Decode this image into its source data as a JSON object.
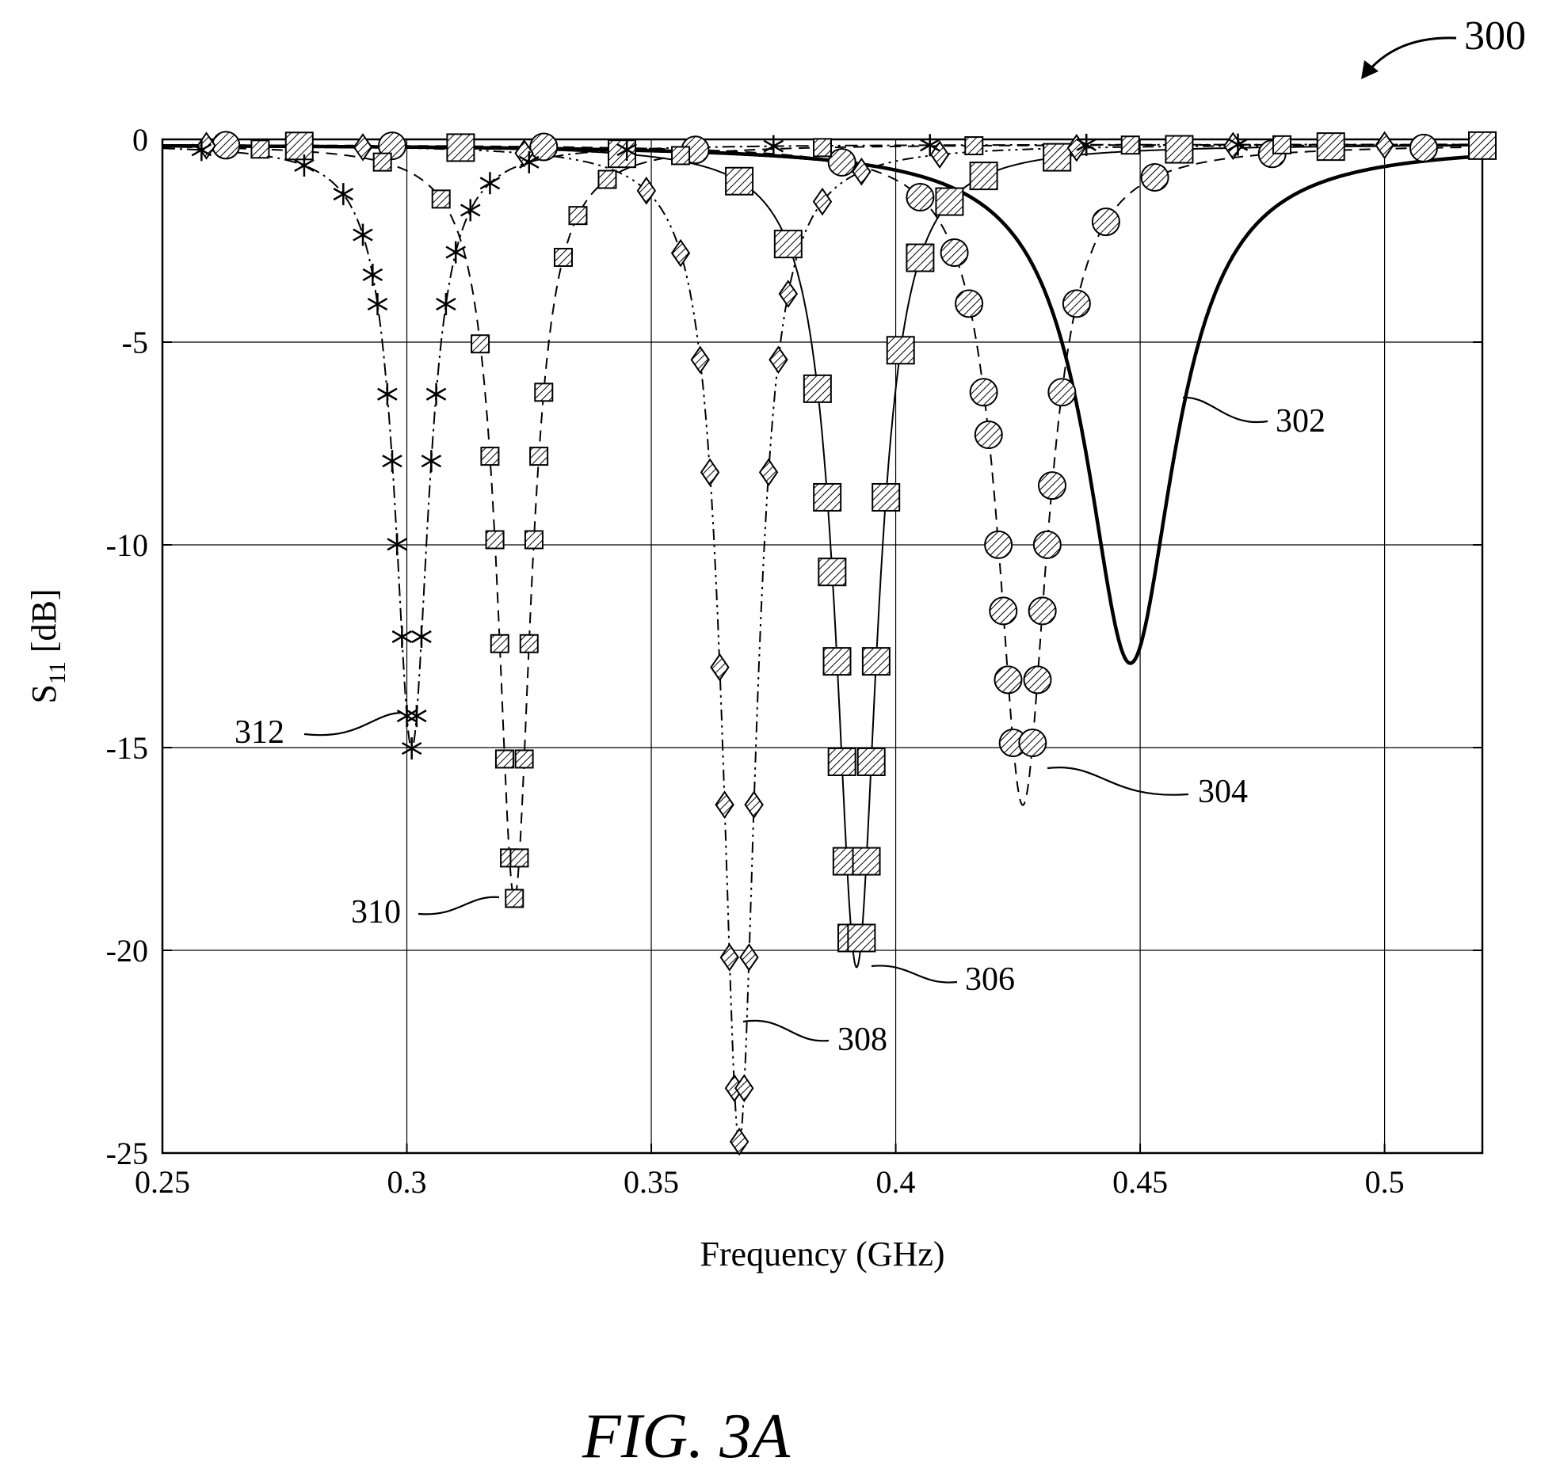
{
  "figure": {
    "number": "300",
    "caption": "FIG. 3A"
  },
  "chart_data": {
    "type": "line",
    "title": "",
    "xlabel": "Frequency (GHz)",
    "ylabel_main": "S",
    "ylabel_sub": "11",
    "ylabel_unit": " [dB]",
    "xlim": [
      0.25,
      0.52
    ],
    "ylim": [
      -25,
      0
    ],
    "xticks": [
      0.25,
      0.3,
      0.35,
      0.4,
      0.45,
      0.5
    ],
    "xtick_labels": [
      "0.25",
      "0.3",
      "0.35",
      "0.4",
      "0.45",
      "0.5"
    ],
    "yticks": [
      0,
      -5,
      -10,
      -15,
      -20,
      -25
    ],
    "ytick_labels": [
      "0",
      "-5",
      "-10",
      "-15",
      "-20",
      "-25"
    ],
    "grid": true,
    "legend": "none",
    "colors": {
      "line": "#000000",
      "marker_fill": "#ffffff",
      "hatch": "#000000"
    },
    "series": [
      {
        "ref": "302",
        "f0": 0.448,
        "min": -12.8,
        "width": 0.011,
        "style": "thick-solid",
        "marker": "none",
        "marker_freqs": []
      },
      {
        "ref": "304",
        "f0": 0.426,
        "min": -16.3,
        "width": 0.0062,
        "style": "dashed",
        "marker": "circle",
        "marker_size": "large",
        "marker_freqs": [
          0.263,
          0.297,
          0.328,
          0.359,
          0.389,
          0.405,
          0.412,
          0.415,
          0.418,
          0.419,
          0.421,
          0.422,
          0.423,
          0.424,
          0.428,
          0.429,
          0.43,
          0.431,
          0.432,
          0.434,
          0.437,
          0.443,
          0.453,
          0.477,
          0.508
        ]
      },
      {
        "ref": "306",
        "f0": 0.392,
        "min": -20.3,
        "width": 0.0052,
        "style": "solid-thin",
        "marker": "square",
        "marker_size": "large",
        "marker_freqs": [
          0.278,
          0.311,
          0.344,
          0.368,
          0.378,
          0.384,
          0.386,
          0.387,
          0.388,
          0.389,
          0.39,
          0.391,
          0.393,
          0.394,
          0.395,
          0.396,
          0.398,
          0.401,
          0.405,
          0.411,
          0.418,
          0.433,
          0.458,
          0.489,
          0.52
        ]
      },
      {
        "ref": "308",
        "f0": 0.368,
        "min": -24.6,
        "width": 0.0042,
        "style": "dash-dot-dot",
        "marker": "diamond",
        "marker_size": "medium",
        "marker_freqs": [
          0.259,
          0.291,
          0.324,
          0.349,
          0.356,
          0.36,
          0.362,
          0.364,
          0.365,
          0.366,
          0.367,
          0.368,
          0.369,
          0.37,
          0.371,
          0.374,
          0.376,
          0.378,
          0.385,
          0.393,
          0.409,
          0.437,
          0.469,
          0.5
        ]
      },
      {
        "ref": "310",
        "f0": 0.322,
        "min": -18.6,
        "width": 0.0042,
        "style": "dashed",
        "marker": "square",
        "marker_size": "small",
        "marker_freqs": [
          0.27,
          0.295,
          0.307,
          0.315,
          0.317,
          0.318,
          0.319,
          0.32,
          0.321,
          0.322,
          0.323,
          0.324,
          0.325,
          0.326,
          0.327,
          0.328,
          0.332,
          0.335,
          0.341,
          0.356,
          0.385,
          0.416,
          0.448,
          0.479
        ]
      },
      {
        "ref": "312",
        "f0": 0.301,
        "min": -14.9,
        "width": 0.0042,
        "style": "dash-dot",
        "marker": "asterisk",
        "marker_size": "medium",
        "marker_freqs": [
          0.258,
          0.279,
          0.287,
          0.291,
          0.293,
          0.294,
          0.296,
          0.297,
          0.298,
          0.299,
          0.3,
          0.301,
          0.302,
          0.303,
          0.305,
          0.306,
          0.308,
          0.31,
          0.313,
          0.317,
          0.325,
          0.345,
          0.375,
          0.407,
          0.439,
          0.47
        ]
      }
    ],
    "annotations": [
      {
        "label": "302",
        "near_series": "302"
      },
      {
        "label": "304",
        "near_series": "304"
      },
      {
        "label": "306",
        "near_series": "306"
      },
      {
        "label": "308",
        "near_series": "308"
      },
      {
        "label": "310",
        "near_series": "310"
      },
      {
        "label": "312",
        "near_series": "312"
      }
    ]
  }
}
